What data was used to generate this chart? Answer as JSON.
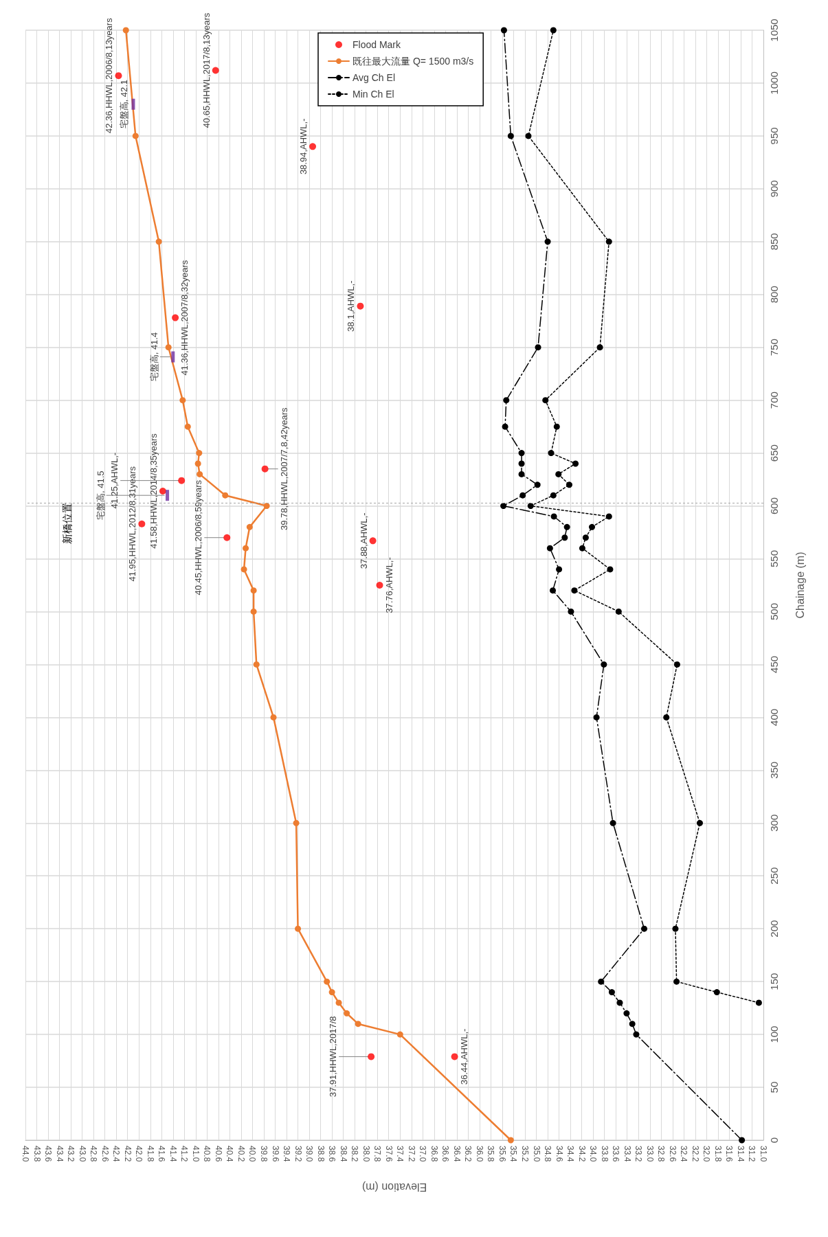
{
  "chart_data": {
    "type": "line",
    "xlabel": "Elevation (m)",
    "ylabel": "Chainage (m)",
    "ylim": [
      0,
      1050
    ],
    "yticks": [
      0,
      50,
      100,
      150,
      200,
      250,
      300,
      350,
      400,
      450,
      500,
      550,
      600,
      650,
      700,
      750,
      800,
      850,
      900,
      950,
      1000,
      1050
    ],
    "xlim": [
      44,
      31
    ],
    "xticks": [
      {
        "value": 44,
        "label": "44.0"
      },
      {
        "value": 43.8,
        "label": "43.8"
      },
      {
        "value": 43.6,
        "label": "43.6"
      },
      {
        "value": 43.4,
        "label": "43.4"
      },
      {
        "value": 43.2,
        "label": "43.2"
      },
      {
        "value": 43,
        "label": "43.0"
      },
      {
        "value": 42.8,
        "label": "42.8"
      },
      {
        "value": 42.6,
        "label": "42.6"
      },
      {
        "value": 42.4,
        "label": "42.4"
      },
      {
        "value": 42.2,
        "label": "42.2"
      },
      {
        "value": 42,
        "label": "42.0"
      },
      {
        "value": 41.8,
        "label": "41.8"
      },
      {
        "value": 41.6,
        "label": "41.6"
      },
      {
        "value": 41.4,
        "label": "41.4"
      },
      {
        "value": 41.2,
        "label": "41.2"
      },
      {
        "value": 41,
        "label": "41.0"
      },
      {
        "value": 40.8,
        "label": "40.8"
      },
      {
        "value": 40.6,
        "label": "40.6"
      },
      {
        "value": 40.4,
        "label": "40.4"
      },
      {
        "value": 40.2,
        "label": "40.2"
      },
      {
        "value": 40,
        "label": "40.0"
      },
      {
        "value": 39.8,
        "label": "39.8"
      },
      {
        "value": 39.6,
        "label": "39.6"
      },
      {
        "value": 39.4,
        "label": "39.4"
      },
      {
        "value": 39.2,
        "label": "39.2"
      },
      {
        "value": 39,
        "label": "39.0"
      },
      {
        "value": 38.8,
        "label": "38.8"
      },
      {
        "value": 38.6,
        "label": "38.6"
      },
      {
        "value": 38.4,
        "label": "38.4"
      },
      {
        "value": 38.2,
        "label": "38.2"
      },
      {
        "value": 38,
        "label": "38.0"
      },
      {
        "value": 37.8,
        "label": "37.8"
      },
      {
        "value": 37.6,
        "label": "37.6"
      },
      {
        "value": 37.4,
        "label": "37.4"
      },
      {
        "value": 37.2,
        "label": "37.2"
      },
      {
        "value": 37,
        "label": "37.0"
      },
      {
        "value": 36.8,
        "label": "36.8"
      },
      {
        "value": 36.6,
        "label": "36.6"
      },
      {
        "value": 36.4,
        "label": "36.4"
      },
      {
        "value": 36.2,
        "label": "36.2"
      },
      {
        "value": 36,
        "label": "36.0"
      },
      {
        "value": 35.8,
        "label": "35.8"
      },
      {
        "value": 35.6,
        "label": "35.6"
      },
      {
        "value": 35.4,
        "label": "35.4"
      },
      {
        "value": 35.2,
        "label": "35.2"
      },
      {
        "value": 35,
        "label": "35.0"
      },
      {
        "value": 34.8,
        "label": "34.8"
      },
      {
        "value": 34.6,
        "label": "34.6"
      },
      {
        "value": 34.4,
        "label": "34.4"
      },
      {
        "value": 34.2,
        "label": "34.2"
      },
      {
        "value": 34,
        "label": "34.0"
      },
      {
        "value": 33.8,
        "label": "33.8"
      },
      {
        "value": 33.6,
        "label": "33.6"
      },
      {
        "value": 33.4,
        "label": "33.4"
      },
      {
        "value": 33.2,
        "label": "33.2"
      },
      {
        "value": 33,
        "label": "33.0"
      },
      {
        "value": 32.8,
        "label": "32.8"
      },
      {
        "value": 32.6,
        "label": "32.6"
      },
      {
        "value": 32.4,
        "label": "32.4"
      },
      {
        "value": 32.2,
        "label": "32.2"
      },
      {
        "value": 32,
        "label": "32.0"
      },
      {
        "value": 31.8,
        "label": "31.8"
      },
      {
        "value": 31.6,
        "label": "31.6"
      },
      {
        "value": 31.4,
        "label": "31.4"
      },
      {
        "value": 31.2,
        "label": "31.2"
      },
      {
        "value": 31,
        "label": "31.0"
      }
    ],
    "grid": true,
    "legend": "top",
    "ref_lines": [
      {
        "axis": "y",
        "value": 603,
        "label": "新橋位置",
        "color": "#a6a6a6",
        "line_style": "dotted"
      }
    ],
    "annotations": [
      {
        "text": "42.36,HHWL,2006/8,13years",
        "x": 42.36,
        "y": 1007
      },
      {
        "text": "40.65,HHWL,2017/8,13years",
        "x": 40.65,
        "y": 1012
      },
      {
        "text": "38.94,AHWL,-",
        "x": 38.94,
        "y": 940
      },
      {
        "text": "38.1,AHWL,-",
        "x": 38.1,
        "y": 789
      },
      {
        "text": "41.36,HHWL,2007/8,32years",
        "x": 41.36,
        "y": 778
      },
      {
        "text": "41.95,HHWL,2012/8,31years",
        "x": 41.95,
        "y": 583
      },
      {
        "text": "41.58,HHWL,2014/8,35years",
        "x": 41.58,
        "y": 614
      },
      {
        "text": "41.25,AHWL,-",
        "x": 41.25,
        "y": 624
      },
      {
        "text": "40.45,HHWL,2006/8,59years",
        "x": 40.45,
        "y": 570
      },
      {
        "text": "39.78,HHWL,2007/7,8,42years",
        "x": 39.78,
        "y": 635
      },
      {
        "text": "37.88,AHWL,-",
        "x": 37.88,
        "y": 567
      },
      {
        "text": "37.76,AHWL,-",
        "x": 37.76,
        "y": 525
      },
      {
        "text": "37.91,HHWL,2017/8",
        "x": 37.91,
        "y": 79
      },
      {
        "text": "36.44,AHWL,-",
        "x": 36.44,
        "y": 79
      },
      {
        "text": "宅盤高, 42.1",
        "x": 42.1,
        "y": 980
      },
      {
        "text": "宅盤高, 41.4",
        "x": 41.4,
        "y": 741
      },
      {
        "text": "宅盤高, 41.5",
        "x": 41.5,
        "y": 610
      }
    ],
    "series": [
      {
        "name": "Flood Mark",
        "type": "scatter",
        "color": "#ff0000",
        "marker": "circle",
        "values": [
          1007,
          1012,
          940,
          789,
          778,
          583,
          614,
          624,
          570,
          635,
          567,
          525,
          79,
          79
        ],
        "x": [
          42.36,
          40.65,
          38.94,
          38.1,
          41.36,
          41.95,
          41.58,
          41.25,
          40.45,
          39.78,
          37.88,
          37.76,
          37.91,
          36.44
        ]
      },
      {
        "name": "既往最大流量 Q= 1500 m3/s",
        "color": "#ed7d31",
        "marker": "circle",
        "line_style": "solid",
        "values": [
          0,
          100,
          110,
          120,
          130,
          140,
          150,
          200,
          300,
          400,
          450,
          500,
          520,
          540,
          560,
          580,
          600,
          610,
          630,
          640,
          650,
          675,
          700,
          750,
          850,
          950,
          1050
        ],
        "x": [
          35.45,
          37.4,
          38.14,
          38.34,
          38.48,
          38.6,
          38.69,
          39.2,
          39.23,
          39.63,
          39.93,
          39.98,
          39.98,
          40.15,
          40.12,
          40.05,
          39.75,
          40.48,
          40.93,
          40.96,
          40.94,
          41.14,
          41.23,
          41.48,
          41.65,
          42.06,
          42.23
        ]
      },
      {
        "name": "Avg Ch El",
        "color": "#000000",
        "marker": "circle",
        "line_style": "dashed",
        "values": [
          0,
          100,
          110,
          120,
          130,
          140,
          150,
          200,
          300,
          400,
          450,
          500,
          520,
          540,
          560,
          570,
          580,
          590,
          600,
          610,
          620,
          630,
          640,
          650,
          675,
          700,
          750,
          850,
          950,
          1050
        ],
        "x": [
          31.38,
          33.24,
          33.31,
          33.41,
          33.53,
          33.67,
          33.86,
          33.1,
          33.65,
          33.94,
          33.81,
          34.39,
          34.71,
          34.6,
          34.76,
          34.5,
          34.46,
          34.69,
          35.58,
          35.24,
          34.98,
          35.26,
          35.26,
          35.26,
          35.55,
          35.53,
          34.97,
          34.8,
          35.45,
          35.57
        ]
      },
      {
        "name": "Min Ch El",
        "color": "#000000",
        "marker": "circle",
        "line_style": "dotted",
        "values": [
          130,
          140,
          150,
          200,
          300,
          400,
          450,
          500,
          520,
          540,
          560,
          570,
          580,
          590,
          600,
          610,
          620,
          630,
          640,
          650,
          675,
          700,
          750,
          850,
          950,
          1050
        ],
        "x": [
          31.08,
          31.82,
          32.53,
          32.55,
          32.12,
          32.71,
          32.52,
          33.55,
          34.33,
          33.7,
          34.19,
          34.13,
          34.02,
          33.72,
          35.1,
          34.7,
          34.42,
          34.61,
          34.31,
          34.74,
          34.64,
          34.84,
          33.88,
          33.72,
          35.14,
          34.7
        ]
      },
      {
        "type": "scatter",
        "color": "#7030a0",
        "marker": "square",
        "values": [
          980,
          741,
          610
        ],
        "x": [
          42.1,
          41.4,
          41.5
        ]
      }
    ]
  }
}
